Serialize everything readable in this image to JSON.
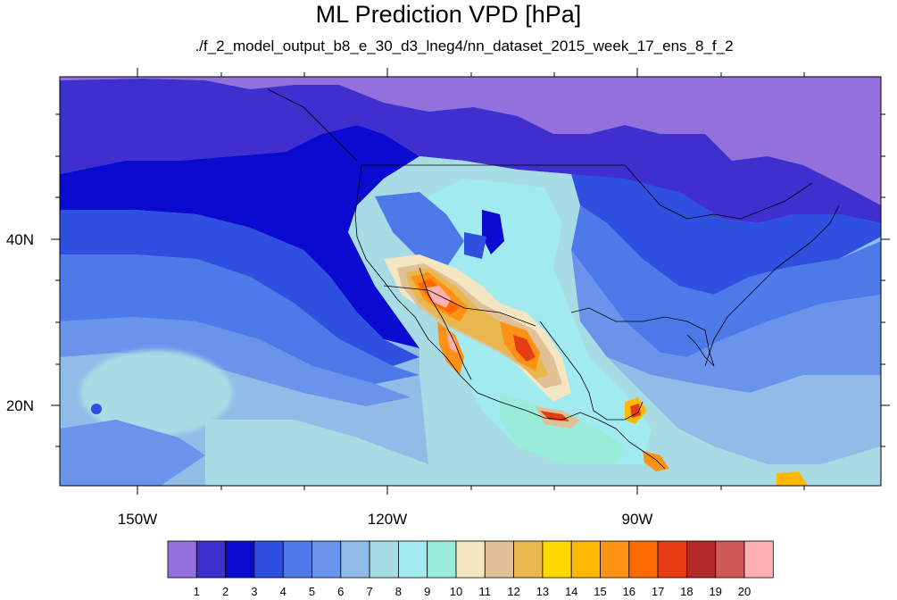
{
  "title": "ML Prediction VPD [hPa]",
  "subtitle": "./f_2_model_output_b8_e_30_d3_lneg4/nn_dataset_2015_week_17_ens_8_f_2",
  "axes": {
    "x_ticks": [
      "150W",
      "120W",
      "90W"
    ],
    "y_ticks": [
      "40N",
      "20N"
    ]
  },
  "colorbar": {
    "colors": [
      "#9370db",
      "#3f2fcf",
      "#0a0ad0",
      "#2f4fe0",
      "#4d7ae8",
      "#6a94ec",
      "#8fbde8",
      "#a8dce4",
      "#a0eaf0",
      "#98ecd8",
      "#f3e6c0",
      "#e0c096",
      "#e8b84f",
      "#ffd900",
      "#ffb700",
      "#ff9214",
      "#ff6a00",
      "#e63c14",
      "#b4282a",
      "#d05858",
      "#ffb0b0"
    ],
    "labels": [
      "1",
      "2",
      "3",
      "4",
      "5",
      "6",
      "7",
      "8",
      "9",
      "10",
      "11",
      "12",
      "13",
      "14",
      "15",
      "16",
      "17",
      "18",
      "19",
      "20"
    ]
  },
  "chart_data": {
    "type": "heatmap",
    "title": "ML Prediction VPD [hPa]",
    "subtitle": "./f_2_model_output_b8_e_30_d3_lneg4/nn_dataset_2015_week_17_ens_8_f_2",
    "units": "hPa",
    "levels": [
      1,
      2,
      3,
      4,
      5,
      6,
      7,
      8,
      9,
      10,
      11,
      12,
      13,
      14,
      15,
      16,
      17,
      18,
      19,
      20
    ],
    "xlim": [
      -159.5,
      -61.5
    ],
    "ylim": [
      9.5,
      59.5
    ],
    "x_ticks": [
      "150W",
      "120W",
      "90W"
    ],
    "y_ticks": [
      "40N",
      "20N"
    ]
  }
}
